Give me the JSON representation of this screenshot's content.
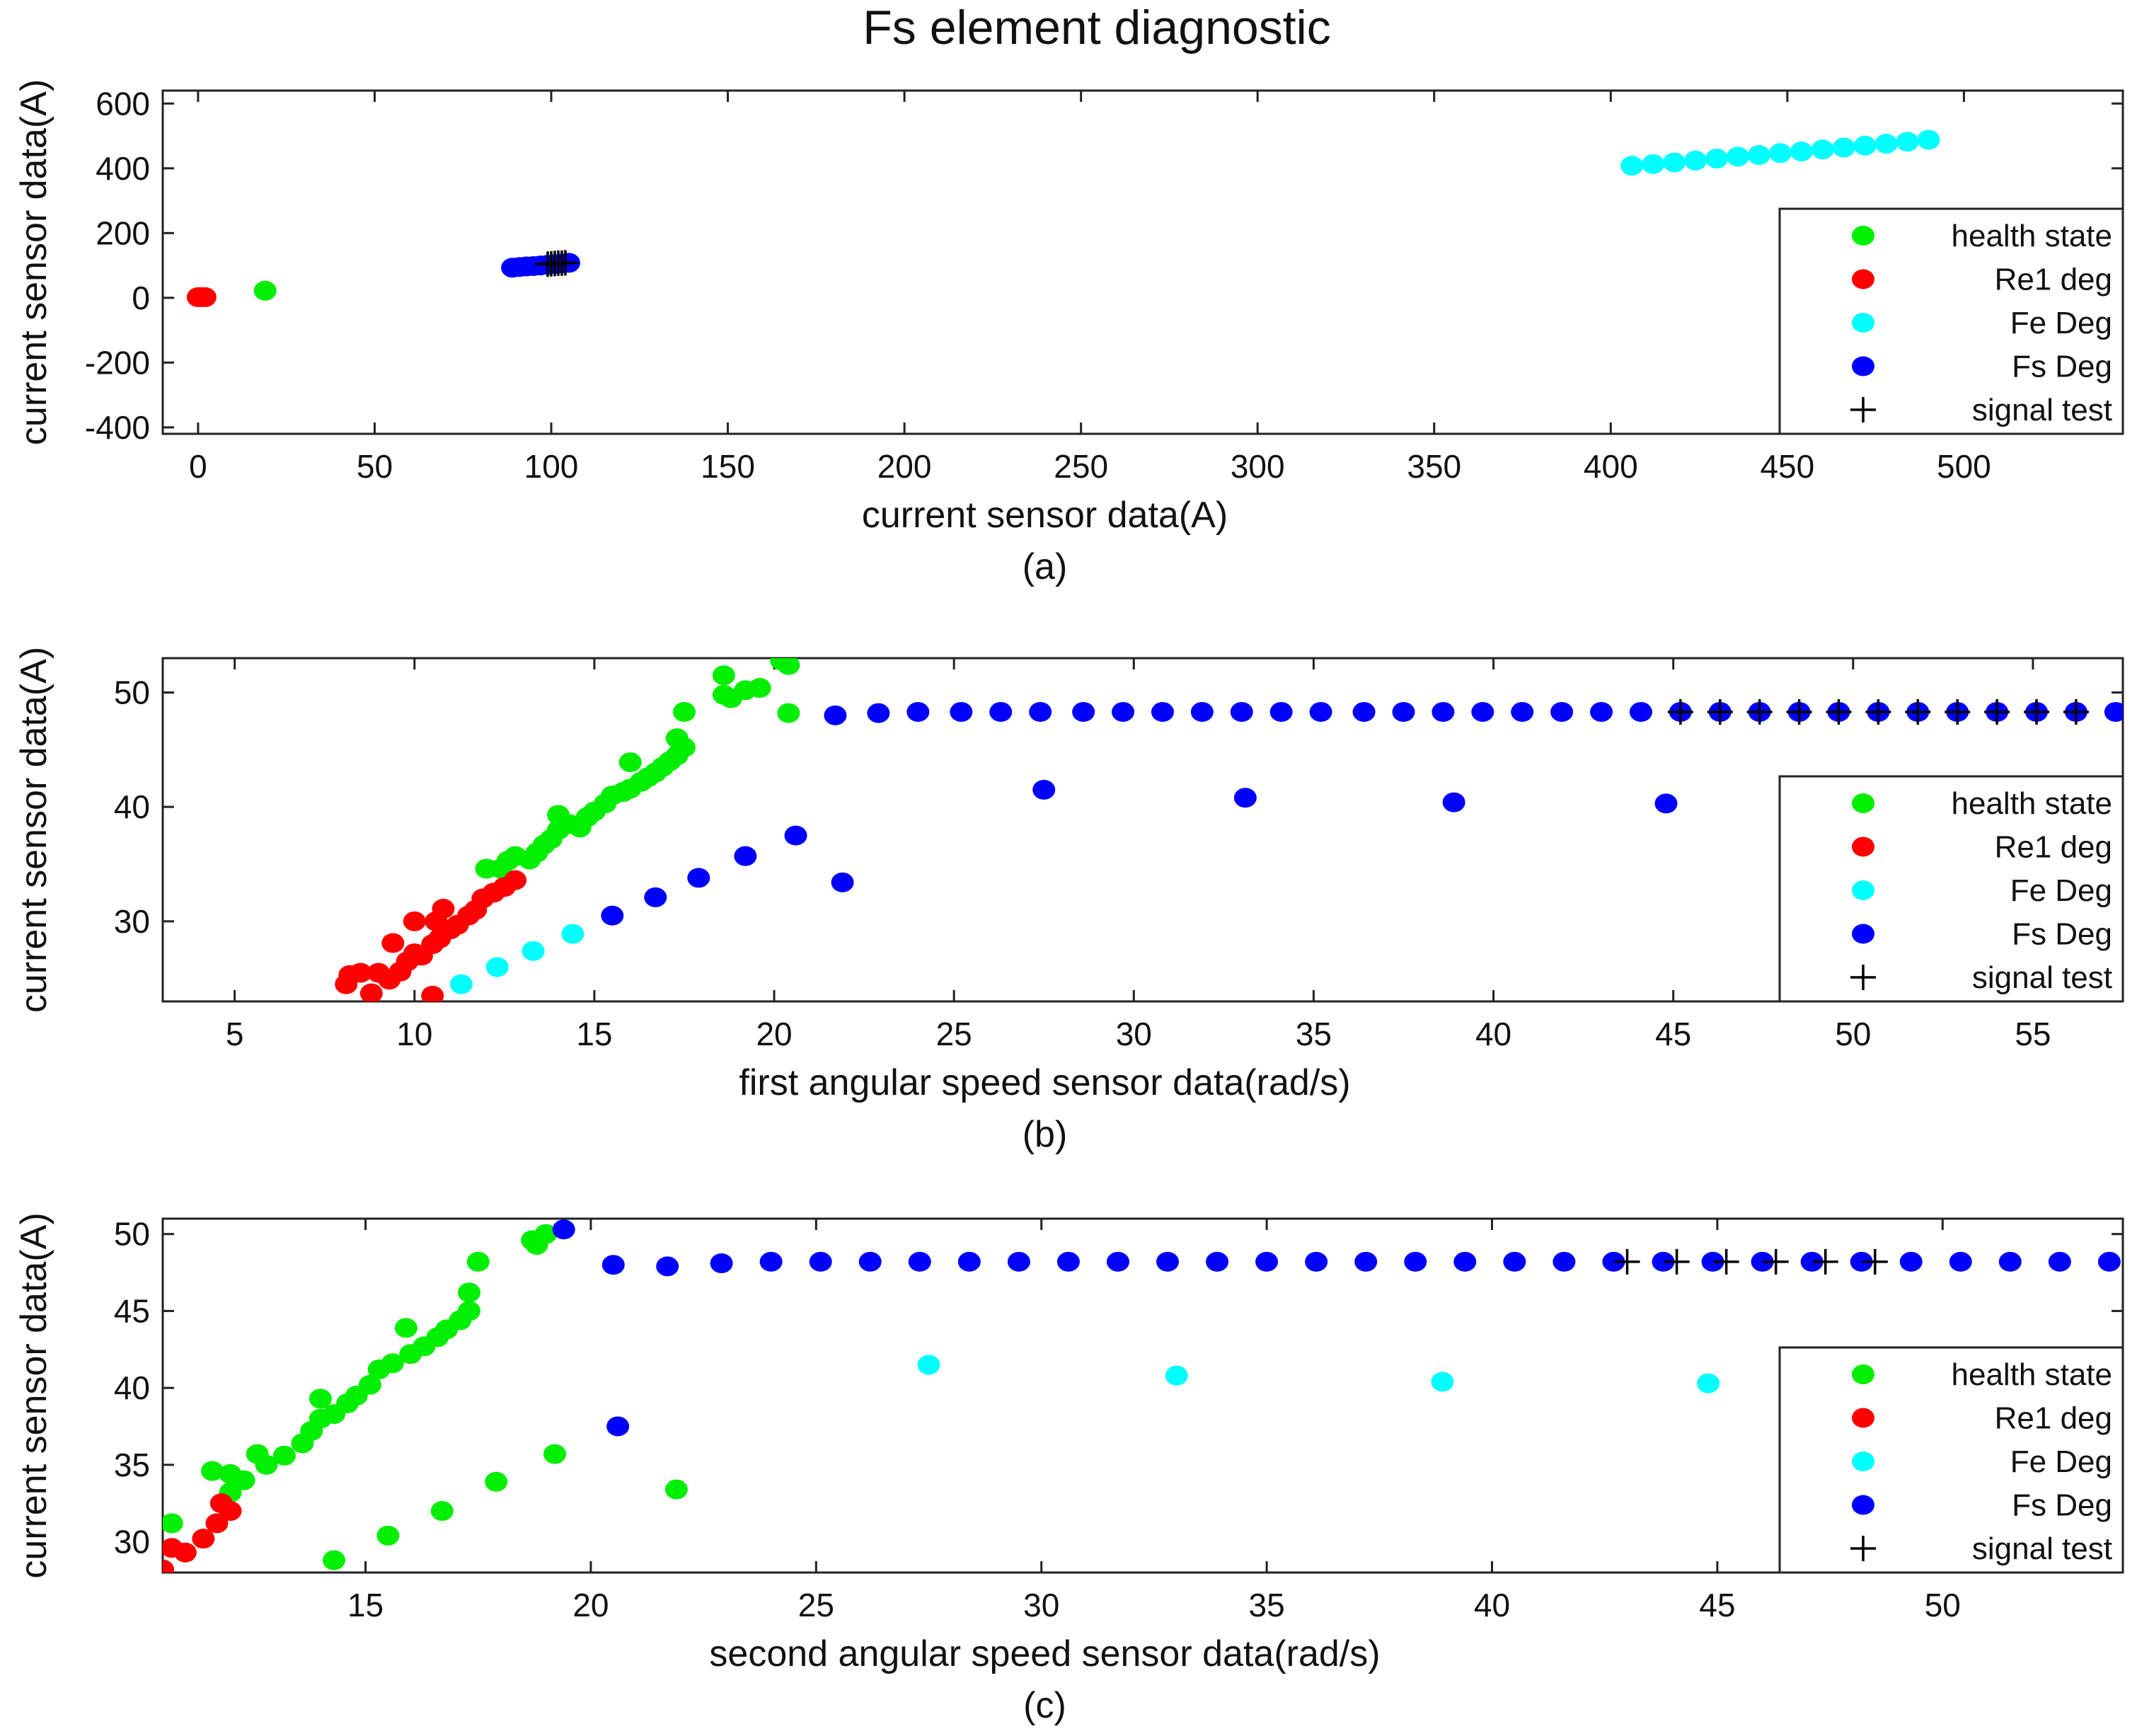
{
  "title": "Fs element diagnostic",
  "colors": {
    "health state": "#00ee00",
    "Re1 deg": "#ff0000",
    "Fe Deg": "#00ffff",
    "Fs Deg": "#0000ff",
    "signal test": "#000000"
  },
  "chart_data": [
    {
      "type": "scatter",
      "caption": "(a)",
      "xlabel": "current sensor data(A)",
      "ylabel": "current sensor data(A)",
      "xlim": [
        -10,
        545
      ],
      "ylim": [
        -420,
        640
      ],
      "xticks": [
        0,
        50,
        100,
        150,
        200,
        250,
        300,
        350,
        400,
        450,
        500
      ],
      "yticks": [
        -400,
        -200,
        0,
        200,
        400,
        600
      ],
      "legend": [
        "health state",
        "Re1 deg",
        "Fe Deg",
        "Fs Deg",
        "signal test"
      ],
      "legend_position": "right",
      "series": [
        {
          "name": "health state",
          "marker": "dot",
          "points": [
            [
              19,
              22
            ]
          ]
        },
        {
          "name": "Re1 deg",
          "marker": "dot",
          "points": [
            [
              0,
              2
            ],
            [
              1,
              2
            ],
            [
              2,
              2
            ]
          ]
        },
        {
          "name": "Fe Deg",
          "marker": "dot",
          "points": [
            [
              406,
              408
            ],
            [
              412,
              413
            ],
            [
              418,
              418
            ],
            [
              424,
              424
            ],
            [
              430,
              430
            ],
            [
              436,
              436
            ],
            [
              442,
              441
            ],
            [
              448,
              447
            ],
            [
              454,
              452
            ],
            [
              460,
              458
            ],
            [
              466,
              464
            ],
            [
              472,
              470
            ],
            [
              478,
              476
            ],
            [
              484,
              482
            ],
            [
              490,
              488
            ]
          ]
        },
        {
          "name": "Fs Deg",
          "marker": "dot",
          "points": [
            [
              89,
              93
            ],
            [
              91,
              95
            ],
            [
              93,
              97
            ],
            [
              95,
              98
            ],
            [
              97,
              100
            ],
            [
              99,
              102
            ],
            [
              101,
              104
            ],
            [
              103,
              106
            ],
            [
              105,
              108
            ]
          ]
        },
        {
          "name": "signal test",
          "marker": "plus",
          "points": [
            [
              99,
              104
            ],
            [
              100,
              105
            ],
            [
              101,
              106
            ],
            [
              102,
              107
            ],
            [
              103,
              107
            ],
            [
              104,
              108
            ]
          ]
        }
      ]
    },
    {
      "type": "scatter",
      "caption": "(b)",
      "xlabel": "first angular speed sensor data(rad/s)",
      "ylabel": "current sensor data(A)",
      "xlim": [
        3,
        57.5
      ],
      "ylim": [
        23,
        53
      ],
      "xticks": [
        5,
        10,
        15,
        20,
        25,
        30,
        35,
        40,
        45,
        50,
        55
      ],
      "yticks": [
        30,
        40,
        50
      ],
      "legend": [
        "health state",
        "Re1 deg",
        "Fe Deg",
        "Fs Deg",
        "signal test"
      ],
      "legend_position": "right",
      "series": [
        {
          "name": "health state",
          "marker": "dot",
          "points": [
            [
              12,
              34.6
            ],
            [
              12.4,
              34.6
            ],
            [
              12.6,
              35.3
            ],
            [
              12.8,
              35.7
            ],
            [
              13.2,
              35.4
            ],
            [
              13.4,
              36
            ],
            [
              13.6,
              36.7
            ],
            [
              13.8,
              37.2
            ],
            [
              14,
              38
            ],
            [
              14,
              39.3
            ],
            [
              14.3,
              38.5
            ],
            [
              14.6,
              38.2
            ],
            [
              14.8,
              39.1
            ],
            [
              15,
              39.6
            ],
            [
              15.3,
              40.3
            ],
            [
              15.5,
              41
            ],
            [
              15.8,
              41.3
            ],
            [
              16,
              41.6
            ],
            [
              16,
              43.9
            ],
            [
              16.3,
              42.2
            ],
            [
              16.5,
              42.6
            ],
            [
              16.7,
              43
            ],
            [
              16.9,
              43.5
            ],
            [
              17.1,
              44
            ],
            [
              17.3,
              44.5
            ],
            [
              17.3,
              46
            ],
            [
              17.5,
              45.2
            ],
            [
              17.5,
              48.3
            ],
            [
              18.6,
              49.8
            ],
            [
              18.6,
              51.5
            ],
            [
              18.8,
              49.5
            ],
            [
              19.2,
              50.2
            ],
            [
              19.6,
              50.4
            ],
            [
              20.2,
              52.8
            ],
            [
              20.4,
              52.4
            ],
            [
              20.4,
              48.2
            ]
          ]
        },
        {
          "name": "Re1 deg",
          "marker": "dot",
          "points": [
            [
              8.1,
              24.5
            ],
            [
              8.2,
              25.3
            ],
            [
              8.5,
              25.5
            ],
            [
              8.8,
              23.7
            ],
            [
              9,
              25.5
            ],
            [
              9.3,
              24.9
            ],
            [
              9.4,
              28.1
            ],
            [
              9.6,
              25.6
            ],
            [
              9.8,
              26.5
            ],
            [
              10,
              27.2
            ],
            [
              10,
              30
            ],
            [
              10.2,
              27
            ],
            [
              10.5,
              28
            ],
            [
              10.6,
              30
            ],
            [
              10.7,
              28.5
            ],
            [
              10.8,
              31.1
            ],
            [
              11,
              29.3
            ],
            [
              11.2,
              29.7
            ],
            [
              11.5,
              30.5
            ],
            [
              11.7,
              31
            ],
            [
              11.9,
              32
            ],
            [
              12.2,
              32.5
            ],
            [
              12.5,
              33
            ],
            [
              12.8,
              33.6
            ],
            [
              10.5,
              23.5
            ]
          ]
        },
        {
          "name": "Fe Deg",
          "marker": "dot",
          "points": [
            [
              11.3,
              24.5
            ],
            [
              12.3,
              26
            ],
            [
              13.3,
              27.4
            ],
            [
              14.4,
              28.9
            ]
          ]
        },
        {
          "name": "Fs Deg",
          "marker": "dot",
          "points": [
            [
              15.5,
              30.5
            ],
            [
              16.7,
              32.1
            ],
            [
              17.9,
              33.8
            ],
            [
              19.2,
              35.7
            ],
            [
              20.6,
              37.5
            ],
            [
              21.9,
              33.4
            ],
            [
              27.5,
              41.5
            ],
            [
              33.1,
              40.8
            ],
            [
              38.9,
              40.4
            ],
            [
              44.8,
              40.3
            ],
            [
              21.7,
              48
            ],
            [
              22.9,
              48.2
            ],
            [
              24,
              48.3
            ],
            [
              25.2,
              48.3
            ],
            [
              26.3,
              48.3
            ],
            [
              27.4,
              48.3
            ],
            [
              28.6,
              48.3
            ],
            [
              29.7,
              48.3
            ],
            [
              30.8,
              48.3
            ],
            [
              31.9,
              48.3
            ],
            [
              33,
              48.3
            ],
            [
              34.1,
              48.3
            ],
            [
              35.2,
              48.3
            ],
            [
              36.4,
              48.3
            ],
            [
              37.5,
              48.3
            ],
            [
              38.6,
              48.3
            ],
            [
              39.7,
              48.3
            ],
            [
              40.8,
              48.3
            ],
            [
              41.9,
              48.3
            ],
            [
              43,
              48.3
            ],
            [
              44.1,
              48.3
            ],
            [
              45.2,
              48.3
            ],
            [
              46.3,
              48.3
            ],
            [
              47.4,
              48.3
            ],
            [
              48.5,
              48.3
            ],
            [
              49.6,
              48.3
            ],
            [
              50.7,
              48.3
            ],
            [
              51.8,
              48.3
            ],
            [
              52.9,
              48.3
            ],
            [
              54,
              48.3
            ],
            [
              55.1,
              48.3
            ],
            [
              56.2,
              48.3
            ],
            [
              57.3,
              48.3
            ]
          ]
        },
        {
          "name": "signal test",
          "marker": "plus",
          "points": [
            [
              45.2,
              48.3
            ],
            [
              46.3,
              48.3
            ],
            [
              47.4,
              48.3
            ],
            [
              48.5,
              48.3
            ],
            [
              49.6,
              48.3
            ],
            [
              50.7,
              48.3
            ],
            [
              51.8,
              48.3
            ],
            [
              52.9,
              48.3
            ],
            [
              54,
              48.3
            ],
            [
              55.1,
              48.3
            ],
            [
              56.2,
              48.3
            ]
          ]
        }
      ]
    },
    {
      "type": "scatter",
      "caption": "(c)",
      "xlabel": "second angular speed sensor data(rad/s)",
      "ylabel": "current sensor data(A)",
      "xlim": [
        10.5,
        54
      ],
      "ylim": [
        28,
        51
      ],
      "xticks": [
        15,
        20,
        25,
        30,
        35,
        40,
        45,
        50
      ],
      "yticks": [
        30,
        35,
        40,
        45,
        50
      ],
      "legend": [
        "health state",
        "Re1 deg",
        "Fe Deg",
        "Fs Deg",
        "signal test"
      ],
      "legend_position": "right",
      "series": [
        {
          "name": "health state",
          "marker": "dot",
          "points": [
            [
              10.7,
              31.2
            ],
            [
              11.6,
              34.6
            ],
            [
              12,
              33.2
            ],
            [
              12,
              34.4
            ],
            [
              12.3,
              34
            ],
            [
              12.6,
              35.7
            ],
            [
              12.8,
              35
            ],
            [
              13.2,
              35.6
            ],
            [
              13.6,
              36.4
            ],
            [
              13.8,
              37.2
            ],
            [
              14,
              38
            ],
            [
              14,
              39.3
            ],
            [
              14.3,
              38.3
            ],
            [
              14.6,
              39
            ],
            [
              14.8,
              39.5
            ],
            [
              15.1,
              40.2
            ],
            [
              15.3,
              41.2
            ],
            [
              15.6,
              41.6
            ],
            [
              15.9,
              43.9
            ],
            [
              16,
              42.2
            ],
            [
              16.3,
              42.7
            ],
            [
              16.6,
              43.3
            ],
            [
              16.8,
              43.8
            ],
            [
              17.1,
              44.4
            ],
            [
              17.3,
              45
            ],
            [
              17.3,
              46.2
            ],
            [
              17.5,
              48.2
            ],
            [
              18.7,
              49.6
            ],
            [
              18.8,
              49.3
            ],
            [
              19,
              50
            ],
            [
              14.3,
              28.8
            ],
            [
              15.5,
              30.4
            ],
            [
              16.7,
              32
            ],
            [
              17.9,
              33.9
            ],
            [
              19.2,
              35.7
            ],
            [
              21.9,
              33.4
            ]
          ]
        },
        {
          "name": "Re1 deg",
          "marker": "dot",
          "points": [
            [
              10.5,
              28.2
            ],
            [
              10.7,
              29.6
            ],
            [
              11,
              29.3
            ],
            [
              11.4,
              30.2
            ],
            [
              11.7,
              31.2
            ],
            [
              11.8,
              32.5
            ],
            [
              12,
              32
            ]
          ]
        },
        {
          "name": "Fe Deg",
          "marker": "dot",
          "points": [
            [
              27.5,
              41.5
            ],
            [
              33,
              40.8
            ],
            [
              38.9,
              40.4
            ],
            [
              44.8,
              40.3
            ]
          ]
        },
        {
          "name": "Fs Deg",
          "marker": "dot",
          "points": [
            [
              19.4,
              50.3
            ],
            [
              20.6,
              37.5
            ],
            [
              20.5,
              48
            ],
            [
              21.7,
              47.9
            ],
            [
              22.9,
              48.1
            ],
            [
              24,
              48.2
            ],
            [
              25.1,
              48.2
            ],
            [
              26.2,
              48.2
            ],
            [
              27.3,
              48.2
            ],
            [
              28.4,
              48.2
            ],
            [
              29.5,
              48.2
            ],
            [
              30.6,
              48.2
            ],
            [
              31.7,
              48.2
            ],
            [
              32.8,
              48.2
            ],
            [
              33.9,
              48.2
            ],
            [
              35,
              48.2
            ],
            [
              36.1,
              48.2
            ],
            [
              37.2,
              48.2
            ],
            [
              38.3,
              48.2
            ],
            [
              39.4,
              48.2
            ],
            [
              40.5,
              48.2
            ],
            [
              41.6,
              48.2
            ],
            [
              42.7,
              48.2
            ],
            [
              43.8,
              48.2
            ],
            [
              44.9,
              48.2
            ],
            [
              46,
              48.2
            ],
            [
              47.1,
              48.2
            ],
            [
              48.2,
              48.2
            ],
            [
              49.3,
              48.2
            ],
            [
              50.4,
              48.2
            ],
            [
              51.5,
              48.2
            ],
            [
              52.6,
              48.2
            ],
            [
              53.7,
              48.2
            ]
          ]
        },
        {
          "name": "signal test",
          "marker": "plus",
          "points": [
            [
              43,
              48.2
            ],
            [
              44.1,
              48.2
            ],
            [
              45.2,
              48.2
            ],
            [
              46.3,
              48.2
            ],
            [
              47.4,
              48.2
            ],
            [
              48.5,
              48.2
            ]
          ]
        }
      ]
    }
  ]
}
